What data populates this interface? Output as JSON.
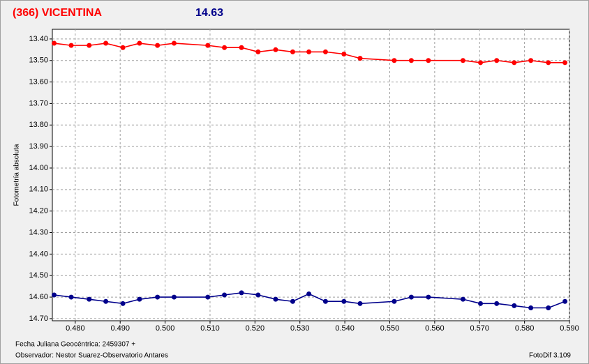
{
  "chart_data": {
    "type": "line",
    "title": "(366) VICENTINA",
    "title_color": "#ff0000",
    "subtitle": "14.63",
    "subtitle_color": "#00008b",
    "y_label": "Fotometría absoluta",
    "footer": [
      "Fecha Juliana Geocéntrica: 2459307 +",
      "Observador: Nestor Suarez-Observatorio Antares"
    ],
    "software": "FotoDif 3.109",
    "y_inverted": true,
    "grid": true,
    "xlim": [
      0.4749,
      0.59
    ],
    "ylim": [
      13.355,
      14.71
    ],
    "xticks": [
      {
        "value": 0.48,
        "label": "0.480"
      },
      {
        "value": 0.49,
        "label": "0.490"
      },
      {
        "value": 0.5,
        "label": "0.500"
      },
      {
        "value": 0.51,
        "label": "0.510"
      },
      {
        "value": 0.52,
        "label": "0.520"
      },
      {
        "value": 0.53,
        "label": "0.530"
      },
      {
        "value": 0.54,
        "label": "0.540"
      },
      {
        "value": 0.55,
        "label": "0.550"
      },
      {
        "value": 0.56,
        "label": "0.560"
      },
      {
        "value": 0.57,
        "label": "0.570"
      },
      {
        "value": 0.58,
        "label": "0.580"
      },
      {
        "value": 0.59,
        "label": "0.590"
      }
    ],
    "yticks": [
      {
        "value": 13.4,
        "label": "13.40"
      },
      {
        "value": 13.5,
        "label": "13.50"
      },
      {
        "value": 13.6,
        "label": "13.60"
      },
      {
        "value": 13.7,
        "label": "13.70"
      },
      {
        "value": 13.8,
        "label": "13.80"
      },
      {
        "value": 13.9,
        "label": "13.90"
      },
      {
        "value": 14.0,
        "label": "14.00"
      },
      {
        "value": 14.1,
        "label": "14.10"
      },
      {
        "value": 14.2,
        "label": "14.20"
      },
      {
        "value": 14.3,
        "label": "14.30"
      },
      {
        "value": 14.4,
        "label": "14.40"
      },
      {
        "value": 14.5,
        "label": "14.50"
      },
      {
        "value": 14.6,
        "label": "14.60"
      },
      {
        "value": 14.7,
        "label": "14.70"
      }
    ],
    "x": [
      0.4753,
      0.4791,
      0.4831,
      0.4868,
      0.4906,
      0.4943,
      0.4983,
      0.502,
      0.5095,
      0.5132,
      0.517,
      0.5207,
      0.5246,
      0.5284,
      0.532,
      0.5357,
      0.5398,
      0.5434,
      0.551,
      0.5548,
      0.5586,
      0.5663,
      0.5702,
      0.5738,
      0.5777,
      0.5814,
      0.5853,
      0.589
    ],
    "series": [
      {
        "color": "#ff0000",
        "values": [
          13.42,
          13.43,
          13.43,
          13.42,
          13.44,
          13.42,
          13.43,
          13.42,
          13.43,
          13.44,
          13.44,
          13.46,
          13.45,
          13.46,
          13.46,
          13.46,
          13.47,
          13.49,
          13.5,
          13.5,
          13.5,
          13.5,
          13.51,
          13.5,
          13.51,
          13.5,
          13.51,
          13.51
        ]
      },
      {
        "color": "#00008b",
        "values": [
          14.59,
          14.6,
          14.61,
          14.62,
          14.63,
          14.61,
          14.6,
          14.6,
          14.6,
          14.59,
          14.58,
          14.59,
          14.61,
          14.62,
          14.585,
          14.62,
          14.62,
          14.63,
          14.62,
          14.6,
          14.6,
          14.61,
          14.63,
          14.63,
          14.64,
          14.65,
          14.65,
          14.62
        ]
      }
    ]
  }
}
